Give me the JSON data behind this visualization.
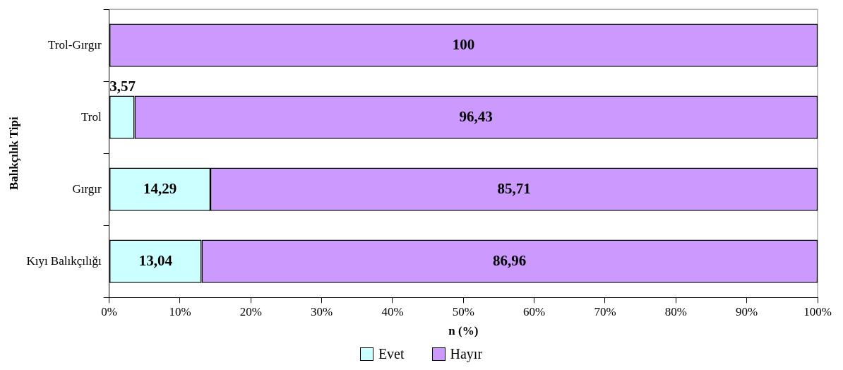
{
  "chart_data": {
    "type": "bar",
    "orientation": "horizontal",
    "stacked": true,
    "xlabel": "n (%)",
    "ylabel": "Balıkçılık Tipi",
    "categories": [
      "Trol-Gırgır",
      "Trol",
      "Gırgır",
      "Kıyı Balıkçılığı"
    ],
    "series": [
      {
        "name": "Evet",
        "color": "#ccffff",
        "values": [
          0,
          3.57,
          14.29,
          13.04
        ],
        "value_labels": [
          null,
          "3,57",
          "14,29",
          "13,04"
        ]
      },
      {
        "name": "Hayır",
        "color": "#cc99ff",
        "values": [
          100,
          96.43,
          85.71,
          86.96
        ],
        "value_labels": [
          "100",
          "96,43",
          "85,71",
          "86,96"
        ]
      }
    ],
    "xlim": [
      0,
      100
    ],
    "xticks": [
      {
        "value": 0,
        "label": "0%"
      },
      {
        "value": 10,
        "label": "10%"
      },
      {
        "value": 20,
        "label": "20%"
      },
      {
        "value": 30,
        "label": "30%"
      },
      {
        "value": 40,
        "label": "40%"
      },
      {
        "value": 50,
        "label": "50%"
      },
      {
        "value": 60,
        "label": "60%"
      },
      {
        "value": 70,
        "label": "70%"
      },
      {
        "value": 80,
        "label": "80%"
      },
      {
        "value": 90,
        "label": "90%"
      },
      {
        "value": 100,
        "label": "100%"
      }
    ],
    "grid": false,
    "legend": "bottom"
  }
}
